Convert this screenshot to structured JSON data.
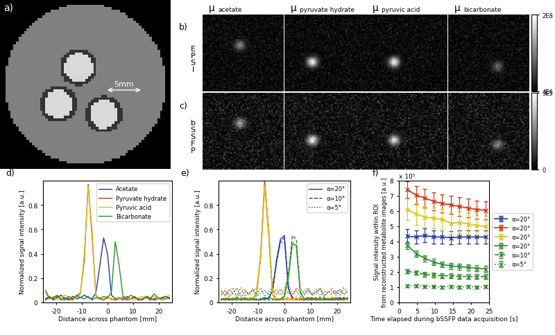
{
  "images": {
    "phantom": {
      "label": "a)",
      "scale_bar_label": "5mm"
    },
    "metabolite_maps": {
      "symbol": "μ",
      "metabolites": [
        "acetate",
        "pyruvate hydrate",
        "pyruvic acid",
        "bicarbonate"
      ],
      "rows": [
        {
          "label": "b)",
          "name": "EPSI",
          "colorbar_range": [
            4000000,
            200000000
          ],
          "colorbar_ticks": [
            {
              "value": 4000000,
              "label": "4E6"
            },
            {
              "value": 200000000,
              "label": "2E8"
            }
          ]
        },
        {
          "label": "c)",
          "name": "bSSFP",
          "colorbar_range": [
            0,
            300000
          ],
          "colorbar_ticks": [
            0,
            {
              "value": 300000,
              "label": "3E5"
            }
          ]
        }
      ]
    }
  },
  "chart_data": [
    {
      "panel": "d)",
      "type": "line",
      "x": [
        -24,
        -22.5,
        -21,
        -19.5,
        -18,
        -16.5,
        -15,
        -13.5,
        -12,
        -10.5,
        -9,
        -7.5,
        -6,
        -4.5,
        -3,
        -1.5,
        0,
        1.5,
        3,
        4.5,
        6,
        7.5,
        9,
        10.5,
        12,
        13.5,
        15,
        16.5,
        18,
        19.5,
        21,
        22.5,
        24
      ],
      "xlim": [
        -25,
        25
      ],
      "xticks": [
        -20,
        -10,
        0,
        10,
        20
      ],
      "ylim": [
        0,
        1
      ],
      "yticks": [
        0,
        0.2,
        0.4,
        0.6,
        0.8
      ],
      "x_label": "Distance across phantom [mm]",
      "y_label": "Normalized signal intensity [a.u.]",
      "legend": "upper right",
      "series": [
        {
          "name": "Acetate",
          "color": "#1f3a93",
          "line_style": "solid",
          "values": [
            0.03,
            0.05,
            0.02,
            0.04,
            0.06,
            0.03,
            0.02,
            0.05,
            0.03,
            0.04,
            0.06,
            0.04,
            0.03,
            0.08,
            0.3,
            0.53,
            0.4,
            0.06,
            0.03,
            0.04,
            0.02,
            0.05,
            0.03,
            0.04,
            0.02,
            0.03,
            0.05,
            0.04,
            0.02,
            0.03,
            0.04,
            0.05,
            0.03
          ]
        },
        {
          "name": "Pyruvate hydrate",
          "color": "#cc3311",
          "line_style": "solid",
          "values": [
            0.02,
            0.04,
            0.03,
            0.05,
            0.02,
            0.04,
            0.03,
            0.02,
            0.05,
            0.08,
            0.35,
            0.97,
            0.55,
            0.06,
            0.03,
            0.02,
            0.04,
            0.03,
            0.02,
            0.03,
            0.04,
            0.02,
            0.03,
            0.05,
            0.02,
            0.03,
            0.04,
            0.02,
            0.03,
            0.04,
            0.02,
            0.03,
            0.04
          ]
        },
        {
          "name": "Pyruvic acid",
          "color": "#d9c41c",
          "line_style": "solid",
          "values": [
            0.08,
            0.03,
            0.05,
            0.02,
            0.04,
            0.06,
            0.04,
            0.03,
            0.04,
            0.07,
            0.4,
            0.95,
            0.6,
            0.05,
            0.04,
            0.03,
            0.05,
            0.02,
            0.04,
            0.03,
            0.05,
            0.04,
            0.03,
            0.02,
            0.04,
            0.05,
            0.03,
            0.04,
            0.05,
            0.03,
            0.02,
            0.04,
            0.06
          ]
        },
        {
          "name": "Bicarbonate",
          "color": "#2e8b2e",
          "line_style": "solid",
          "values": [
            0.1,
            0.03,
            0.04,
            0.06,
            0.03,
            0.02,
            0.05,
            0.03,
            0.06,
            0.04,
            0.03,
            0.05,
            0.02,
            0.04,
            0.03,
            0.05,
            0.04,
            0.08,
            0.5,
            0.3,
            0.05,
            0.03,
            0.06,
            0.04,
            0.03,
            0.02,
            0.05,
            0.03,
            0.07,
            0.04,
            0.03,
            0.05,
            0.04
          ]
        }
      ]
    },
    {
      "panel": "e)",
      "type": "line",
      "x": [
        -24,
        -22.5,
        -21,
        -19.5,
        -18,
        -16.5,
        -15,
        -13.5,
        -12,
        -10.5,
        -9,
        -7.5,
        -6,
        -4.5,
        -3,
        -1.5,
        0,
        1.5,
        3,
        4.5,
        6,
        7.5,
        9,
        10.5,
        12,
        13.5,
        15,
        16.5,
        18,
        19.5,
        21,
        22.5,
        24
      ],
      "xlim": [
        -25,
        25
      ],
      "xticks": [
        -20,
        -10,
        0,
        10,
        20
      ],
      "ylim": [
        0,
        1
      ],
      "yticks": [
        0,
        0.2,
        0.4,
        0.6,
        0.8
      ],
      "x_label": "Distance across phantom [mm]",
      "y_label": "Normalized signal intensity [a.u.]",
      "legend": "upper right",
      "series": [
        {
          "name": "α=20°",
          "color": "#1f3a93",
          "line_style": "solid",
          "values": [
            0.02,
            0.03,
            0.02,
            0.03,
            0.04,
            0.02,
            0.03,
            0.02,
            0.03,
            0.02,
            0.03,
            0.04,
            0.03,
            0.1,
            0.35,
            0.52,
            0.55,
            0.12,
            0.03,
            0.02,
            0.03,
            0.02,
            0.03,
            0.04,
            0.02,
            0.03,
            0.02,
            0.03,
            0.02,
            0.03,
            0.04,
            0.02,
            0.03
          ]
        },
        {
          "name": "α=10°",
          "color": "#1f3a93",
          "line_style": "dashed",
          "values": [
            0.03,
            0.02,
            0.04,
            0.02,
            0.03,
            0.03,
            0.02,
            0.04,
            0.02,
            0.03,
            0.02,
            0.03,
            0.04,
            0.09,
            0.33,
            0.5,
            0.53,
            0.1,
            0.04,
            0.03,
            0.02,
            0.03,
            0.04,
            0.02,
            0.03,
            0.02,
            0.04,
            0.02,
            0.03,
            0.02,
            0.03,
            0.04,
            0.02
          ]
        },
        {
          "name": "α=5°",
          "color": "#1f3a93",
          "line_style": "dotted",
          "values": [
            0.06,
            0.1,
            0.05,
            0.08,
            0.12,
            0.04,
            0.09,
            0.07,
            0.11,
            0.05,
            0.08,
            0.1,
            0.06,
            0.14,
            0.32,
            0.5,
            0.48,
            0.15,
            0.07,
            0.1,
            0.05,
            0.09,
            0.12,
            0.06,
            0.08,
            0.11,
            0.05,
            0.09,
            0.07,
            0.1,
            0.06,
            0.12,
            0.08
          ]
        },
        {
          "color": "#cc3311",
          "line_style": "solid",
          "values": [
            0.02,
            0.03,
            0.02,
            0.03,
            0.02,
            0.03,
            0.04,
            0.02,
            0.03,
            0.08,
            0.4,
            1.0,
            0.6,
            0.07,
            0.03,
            0.02,
            0.03,
            0.02,
            0.03,
            0.02,
            0.03,
            0.02,
            0.04,
            0.02,
            0.03,
            0.02,
            0.03,
            0.02,
            0.03,
            0.04,
            0.02,
            0.03,
            0.02
          ]
        },
        {
          "color": "#cc3311",
          "line_style": "dashed",
          "values": [
            0.03,
            0.02,
            0.03,
            0.02,
            0.04,
            0.02,
            0.03,
            0.03,
            0.02,
            0.07,
            0.38,
            0.98,
            0.58,
            0.06,
            0.02,
            0.03,
            0.02,
            0.04,
            0.02,
            0.03,
            0.02,
            0.03,
            0.02,
            0.03,
            0.02,
            0.04,
            0.02,
            0.03,
            0.02,
            0.03,
            0.02,
            0.04,
            0.03
          ]
        },
        {
          "color": "#cc3311",
          "line_style": "dotted",
          "values": [
            0.09,
            0.05,
            0.11,
            0.07,
            0.06,
            0.12,
            0.05,
            0.08,
            0.1,
            0.12,
            0.36,
            0.95,
            0.55,
            0.1,
            0.07,
            0.11,
            0.06,
            0.09,
            0.05,
            0.12,
            0.08,
            0.06,
            0.1,
            0.07,
            0.11,
            0.05,
            0.09,
            0.08,
            0.12,
            0.06,
            0.1,
            0.07,
            0.09
          ]
        },
        {
          "color": "#d9c41c",
          "line_style": "solid",
          "values": [
            0.03,
            0.02,
            0.03,
            0.04,
            0.02,
            0.03,
            0.02,
            0.03,
            0.04,
            0.07,
            0.42,
            0.97,
            0.62,
            0.06,
            0.02,
            0.03,
            0.04,
            0.02,
            0.03,
            0.02,
            0.04,
            0.03,
            0.02,
            0.03,
            0.04,
            0.02,
            0.03,
            0.02,
            0.04,
            0.03,
            0.02,
            0.03,
            0.02
          ]
        },
        {
          "color": "#d9c41c",
          "line_style": "dashed",
          "values": [
            0.02,
            0.03,
            0.04,
            0.02,
            0.03,
            0.02,
            0.04,
            0.03,
            0.02,
            0.08,
            0.4,
            0.95,
            0.6,
            0.07,
            0.03,
            0.02,
            0.03,
            0.03,
            0.02,
            0.04,
            0.02,
            0.03,
            0.03,
            0.02,
            0.03,
            0.03,
            0.02,
            0.04,
            0.02,
            0.02,
            0.03,
            0.02,
            0.04
          ]
        },
        {
          "color": "#d9c41c",
          "line_style": "dotted",
          "values": [
            0.07,
            0.12,
            0.06,
            0.09,
            0.11,
            0.05,
            0.1,
            0.08,
            0.06,
            0.13,
            0.38,
            0.93,
            0.57,
            0.11,
            0.06,
            0.09,
            0.12,
            0.07,
            0.1,
            0.05,
            0.08,
            0.11,
            0.07,
            0.09,
            0.06,
            0.12,
            0.08,
            0.1,
            0.05,
            0.09,
            0.11,
            0.07,
            0.1
          ]
        },
        {
          "color": "#2e8b2e",
          "line_style": "solid",
          "values": [
            0.03,
            0.02,
            0.03,
            0.02,
            0.04,
            0.02,
            0.03,
            0.02,
            0.03,
            0.02,
            0.03,
            0.02,
            0.04,
            0.03,
            0.02,
            0.03,
            0.05,
            0.2,
            0.48,
            0.47,
            0.08,
            0.03,
            0.02,
            0.03,
            0.02,
            0.04,
            0.02,
            0.03,
            0.02,
            0.03,
            0.02,
            0.03,
            0.04
          ]
        },
        {
          "color": "#2e8b2e",
          "line_style": "dashed",
          "values": [
            0.02,
            0.04,
            0.02,
            0.03,
            0.02,
            0.03,
            0.02,
            0.04,
            0.02,
            0.03,
            0.02,
            0.04,
            0.02,
            0.02,
            0.03,
            0.02,
            0.06,
            0.22,
            0.55,
            0.52,
            0.09,
            0.02,
            0.03,
            0.02,
            0.04,
            0.02,
            0.03,
            0.02,
            0.04,
            0.02,
            0.03,
            0.02,
            0.03
          ]
        },
        {
          "color": "#2e8b2e",
          "line_style": "dotted",
          "values": [
            0.1,
            0.06,
            0.09,
            0.12,
            0.05,
            0.08,
            0.11,
            0.06,
            0.1,
            0.07,
            0.12,
            0.05,
            0.09,
            0.08,
            0.11,
            0.06,
            0.1,
            0.24,
            0.5,
            0.45,
            0.12,
            0.07,
            0.1,
            0.06,
            0.09,
            0.12,
            0.05,
            0.08,
            0.1,
            0.07,
            0.11,
            0.06,
            0.09
          ]
        }
      ]
    },
    {
      "panel": "f)",
      "type": "line",
      "x": [
        2.4,
        4.8,
        7.2,
        9.6,
        12,
        14.4,
        16.8,
        19.2,
        21.6,
        24
      ],
      "xlim": [
        0,
        25
      ],
      "xticks": [
        0,
        5,
        10,
        15,
        20,
        25
      ],
      "ylim": [
        0,
        8
      ],
      "yticks": [
        0,
        1,
        2,
        3,
        4,
        5,
        6,
        7,
        8
      ],
      "y_multiplier": "x 10⁵",
      "x_label": "Time elapsed during bSSFP data acquisition [s]",
      "y_label": "Signal intensity within ROI\nfrom reconstructed metabolite images [a.u.]",
      "legend": "right",
      "series": [
        {
          "name": "α=20°",
          "color": "#1f3a93",
          "line_style": "solid",
          "marker": "x",
          "values": [
            4.35,
            4.3,
            4.4,
            4.3,
            4.3,
            4.25,
            4.3,
            4.3,
            4.3,
            4.3
          ],
          "errors": [
            0.45,
            0.45,
            0.45,
            0.45,
            0.45,
            0.45,
            0.45,
            0.45,
            0.45,
            0.45
          ]
        },
        {
          "name": "α=20°",
          "color": "#cc3311",
          "line_style": "solid",
          "marker": "x",
          "values": [
            7.4,
            7.05,
            6.85,
            6.65,
            6.5,
            6.4,
            6.3,
            6.2,
            6.1,
            6.05
          ],
          "errors": [
            0.55,
            0.6,
            0.6,
            0.6,
            0.6,
            0.6,
            0.6,
            0.6,
            0.6,
            0.6
          ]
        },
        {
          "name": "α=20°",
          "color": "#d9c41c",
          "line_style": "solid",
          "marker": "x",
          "values": [
            6.1,
            5.8,
            5.6,
            5.55,
            5.45,
            5.2,
            5.25,
            5.15,
            5.05,
            5.0
          ],
          "errors": [
            0.7,
            0.7,
            0.7,
            0.7,
            0.7,
            0.7,
            0.7,
            0.7,
            0.7,
            0.7
          ]
        },
        {
          "name": "α=20°",
          "color": "#2e8b2e",
          "line_style": "solid",
          "marker": "x",
          "values": [
            3.75,
            3.2,
            2.9,
            2.65,
            2.5,
            2.4,
            2.35,
            2.3,
            2.25,
            2.2
          ],
          "errors": [
            0.25,
            0.2,
            0.2,
            0.2,
            0.2,
            0.2,
            0.2,
            0.2,
            0.2,
            0.2
          ]
        },
        {
          "name": "α=10°",
          "color": "#2e8b2e",
          "line_style": "dashed",
          "marker": "x",
          "values": [
            2.05,
            1.95,
            1.85,
            1.8,
            1.75,
            1.75,
            1.7,
            1.7,
            1.7,
            1.7
          ],
          "errors": [
            0.15,
            0.15,
            0.15,
            0.15,
            0.15,
            0.15,
            0.15,
            0.15,
            0.15,
            0.15
          ]
        },
        {
          "name": "α=5°",
          "color": "#2e8b2e",
          "line_style": "dotted",
          "marker": "x",
          "values": [
            1.1,
            1.1,
            1.05,
            1.05,
            1.0,
            1.05,
            1.0,
            1.05,
            1.0,
            1.05
          ],
          "errors": [
            0.1,
            0.1,
            0.1,
            0.1,
            0.1,
            0.1,
            0.1,
            0.1,
            0.1,
            0.1
          ]
        }
      ]
    }
  ]
}
